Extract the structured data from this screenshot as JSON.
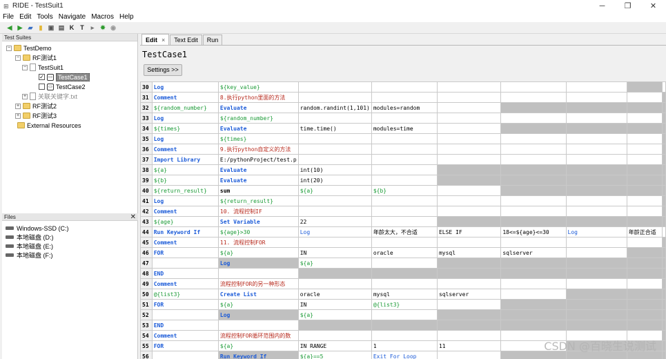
{
  "window": {
    "title": "RIDE - TestSuit1",
    "minimize_glyph": "─",
    "maximize_glyph": "❐",
    "close_glyph": "✕"
  },
  "menu": [
    "File",
    "Edit",
    "Tools",
    "Navigate",
    "Macros",
    "Help"
  ],
  "toolbar_icons": [
    "back-arrow-icon",
    "forward-arrow-icon",
    "open-folder-icon",
    "new-file-icon",
    "save-icon",
    "save-all-icon",
    "search-keyword-icon",
    "test-icon",
    "run-icon",
    "stop-icon",
    "settings-icon"
  ],
  "left": {
    "suites_header": "Test Suites",
    "tree": [
      {
        "label": "TestDemo"
      },
      {
        "label": "RF测试1"
      },
      {
        "label": "TestSuit1"
      },
      {
        "label": "TestCase1"
      },
      {
        "label": "TestCase2"
      },
      {
        "label": "关联关键字.txt"
      },
      {
        "label": "RF测试2"
      },
      {
        "label": "RF测试3"
      },
      {
        "label": "External Resources"
      }
    ],
    "files_header": "Files",
    "files_close": "✕",
    "drives": [
      "Windows-SSD (C:)",
      "本地磁盘 (D:)",
      "本地磁盘 (E:)",
      "本地磁盘 (F:)"
    ]
  },
  "right": {
    "tabs": [
      {
        "label": "Edit"
      },
      {
        "label": "Text Edit"
      },
      {
        "label": "Run"
      }
    ],
    "tab_close": "×",
    "testcase_title": "TestCase1",
    "settings_label": "Settings >>"
  },
  "grid_rows": [
    {
      "n": "30",
      "c": [
        "Log",
        "${key_value}",
        "",
        "",
        "",
        "",
        "",
        "",
        ""
      ]
    },
    {
      "n": "31",
      "c": [
        "Comment",
        "8.执行python里面的方法",
        "",
        "",
        "",
        "",
        "",
        "",
        ""
      ]
    },
    {
      "n": "32",
      "c": [
        "${random_number}",
        "Evaluate",
        "random.randint(1,101)",
        "modules=random",
        "",
        "",
        "",
        "",
        ""
      ]
    },
    {
      "n": "33",
      "c": [
        "Log",
        "${random_number}",
        "",
        "",
        "",
        "",
        "",
        "",
        ""
      ]
    },
    {
      "n": "34",
      "c": [
        "${times}",
        "Evaluate",
        "time.time()",
        "modules=time",
        "",
        "",
        "",
        "",
        ""
      ]
    },
    {
      "n": "35",
      "c": [
        "Log",
        "${times}",
        "",
        "",
        "",
        "",
        "",
        "",
        ""
      ]
    },
    {
      "n": "36",
      "c": [
        "Comment",
        "9.执行python自定义的方法",
        "",
        "",
        "",
        "",
        "",
        "",
        ""
      ]
    },
    {
      "n": "37",
      "c": [
        "Import Library",
        "E:/pythonProject/test.p",
        "",
        "",
        "",
        "",
        "",
        "",
        ""
      ]
    },
    {
      "n": "38",
      "c": [
        "${a}",
        "Evaluate",
        "int(10)",
        "",
        "",
        "",
        "",
        "",
        ""
      ]
    },
    {
      "n": "39",
      "c": [
        "${b}",
        "Evaluate",
        "int(20)",
        "",
        "",
        "",
        "",
        "",
        ""
      ]
    },
    {
      "n": "40",
      "c": [
        "${return_result}",
        "sum",
        "${a}",
        "${b}",
        "",
        "",
        "",
        "",
        ""
      ]
    },
    {
      "n": "41",
      "c": [
        "Log",
        "${return_result}",
        "",
        "",
        "",
        "",
        "",
        "",
        ""
      ]
    },
    {
      "n": "42",
      "c": [
        "Comment",
        "10. 流程控制IF",
        "",
        "",
        "",
        "",
        "",
        "",
        ""
      ]
    },
    {
      "n": "43",
      "c": [
        "${age}",
        "Set Variable",
        "22",
        "",
        "",
        "",
        "",
        "",
        ""
      ]
    },
    {
      "n": "44",
      "c": [
        "Run Keyword If",
        "${age}>30",
        "Log",
        "年龄太大，不合适",
        "ELSE IF",
        "18<=${age}<=30",
        "Log",
        "年龄正合适",
        ""
      ]
    },
    {
      "n": "45",
      "c": [
        "Comment",
        "11. 流程控制FOR",
        "",
        "",
        "",
        "",
        "",
        "",
        ""
      ]
    },
    {
      "n": "46",
      "c": [
        "FOR",
        "${a}",
        "IN",
        "oracle",
        "mysql",
        "sqlserver",
        "",
        "",
        ""
      ]
    },
    {
      "n": "47",
      "c": [
        "",
        "Log",
        "${a}",
        "",
        "",
        "",
        "",
        "",
        ""
      ]
    },
    {
      "n": "48",
      "c": [
        "END",
        "",
        "",
        "",
        "",
        "",
        "",
        "",
        ""
      ]
    },
    {
      "n": "49",
      "c": [
        "Comment",
        "流程控制FOR的另一种形态",
        "",
        "",
        "",
        "",
        "",
        "",
        ""
      ]
    },
    {
      "n": "50",
      "c": [
        "@{list3}",
        "Create List",
        "oracle",
        "mysql",
        "sqlserver",
        "",
        "",
        "",
        ""
      ]
    },
    {
      "n": "51",
      "c": [
        "FOR",
        "${a}",
        "IN",
        "@{list3}",
        "",
        "",
        "",
        "",
        ""
      ]
    },
    {
      "n": "52",
      "c": [
        "",
        "Log",
        "${a}",
        "",
        "",
        "",
        "",
        "",
        ""
      ]
    },
    {
      "n": "53",
      "c": [
        "END",
        "",
        "",
        "",
        "",
        "",
        "",
        "",
        ""
      ]
    },
    {
      "n": "54",
      "c": [
        "Comment",
        "流程控制FOR循环范围内的数",
        "",
        "",
        "",
        "",
        "",
        "",
        ""
      ]
    },
    {
      "n": "55",
      "c": [
        "FOR",
        "${a}",
        "IN RANGE",
        "1",
        "11",
        "",
        "",
        "",
        ""
      ]
    },
    {
      "n": "56",
      "c": [
        "",
        "Run Keyword If",
        "${a}==5",
        "Exit For Loop",
        "",
        "",
        "",
        "",
        ""
      ]
    }
  ],
  "watermark": "CSDN @百晓生说测试"
}
